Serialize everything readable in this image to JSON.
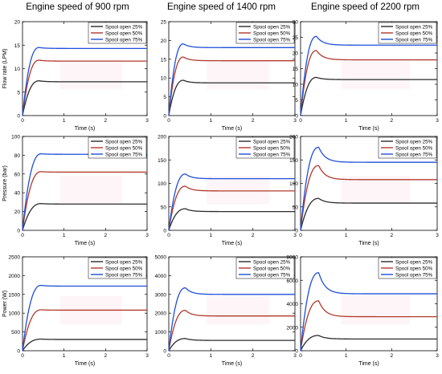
{
  "column_titles": [
    "Engine speed of 900 rpm",
    "Engine speed of 1400 rpm",
    "Engine speed of 2200 rpm"
  ],
  "legend_labels": [
    "Spool open 25%",
    "Spool open 50%",
    "Spool open 75%"
  ],
  "series_colors": [
    "#2b2b2b",
    "#b03a2e",
    "#1f4fd8"
  ],
  "chart_data": [
    {
      "type": "line",
      "row": 0,
      "col": 0,
      "title": "Engine speed of 900 rpm",
      "xlabel": "Time (s)",
      "ylabel": "Flow rate (LPM)",
      "xlim": [
        0,
        3
      ],
      "ylim": [
        0,
        20
      ],
      "xticks": [
        0,
        1,
        2,
        3
      ],
      "yticks": [
        0,
        5,
        10,
        15,
        20
      ],
      "series": [
        {
          "name": "Spool open 25%",
          "steady": 7.2,
          "peak": 7.4,
          "t_peak": 0.4
        },
        {
          "name": "Spool open 50%",
          "steady": 11.6,
          "peak": 11.8,
          "t_peak": 0.4
        },
        {
          "name": "Spool open 75%",
          "steady": 14.3,
          "peak": 14.5,
          "t_peak": 0.4
        }
      ]
    },
    {
      "type": "line",
      "row": 0,
      "col": 1,
      "title": "Engine speed of 1400 rpm",
      "xlabel": "Time (s)",
      "ylabel": "",
      "xlim": [
        0,
        3
      ],
      "ylim": [
        0,
        25
      ],
      "xticks": [
        0,
        1,
        2,
        3
      ],
      "yticks": [
        0,
        5,
        10,
        15,
        20,
        25
      ],
      "series": [
        {
          "name": "Spool open 25%",
          "steady": 8.7,
          "peak": 9.4,
          "t_peak": 0.35
        },
        {
          "name": "Spool open 50%",
          "steady": 14.6,
          "peak": 15.6,
          "t_peak": 0.35
        },
        {
          "name": "Spool open 75%",
          "steady": 18.1,
          "peak": 19.1,
          "t_peak": 0.35
        }
      ]
    },
    {
      "type": "line",
      "row": 0,
      "col": 2,
      "title": "Engine speed of 2200 rpm",
      "xlabel": "Time (s)",
      "ylabel": "",
      "xlim": [
        0,
        3
      ],
      "ylim": [
        0,
        30
      ],
      "xticks": [
        0,
        1,
        2,
        3
      ],
      "yticks": [
        0,
        5,
        10,
        15,
        20,
        25,
        30
      ],
      "series": [
        {
          "name": "Spool open 25%",
          "steady": 11.5,
          "peak": 12.2,
          "t_peak": 0.35
        },
        {
          "name": "Spool open 50%",
          "steady": 17.8,
          "peak": 20.8,
          "t_peak": 0.35
        },
        {
          "name": "Spool open 75%",
          "steady": 22.5,
          "peak": 25.3,
          "t_peak": 0.35
        }
      ]
    },
    {
      "type": "line",
      "row": 1,
      "col": 0,
      "title": "",
      "xlabel": "Time (s)",
      "ylabel": "Pressure (bar)",
      "xlim": [
        0,
        3
      ],
      "ylim": [
        0,
        100
      ],
      "xticks": [
        0,
        1,
        2,
        3
      ],
      "yticks": [
        0,
        20,
        40,
        60,
        80,
        100
      ],
      "series": [
        {
          "name": "Spool open 25%",
          "steady": 28,
          "peak": 28.5,
          "t_peak": 0.45
        },
        {
          "name": "Spool open 50%",
          "steady": 62,
          "peak": 62.5,
          "t_peak": 0.45
        },
        {
          "name": "Spool open 75%",
          "steady": 81,
          "peak": 81.5,
          "t_peak": 0.45
        }
      ]
    },
    {
      "type": "line",
      "row": 1,
      "col": 1,
      "title": "",
      "xlabel": "Time (s)",
      "ylabel": "",
      "xlim": [
        0,
        3
      ],
      "ylim": [
        0,
        200
      ],
      "xticks": [
        0,
        1,
        2,
        3
      ],
      "yticks": [
        0,
        50,
        100,
        150,
        200
      ],
      "series": [
        {
          "name": "Spool open 25%",
          "steady": 40,
          "peak": 46,
          "t_peak": 0.4
        },
        {
          "name": "Spool open 50%",
          "steady": 84,
          "peak": 94,
          "t_peak": 0.4
        },
        {
          "name": "Spool open 75%",
          "steady": 110,
          "peak": 120,
          "t_peak": 0.4
        }
      ]
    },
    {
      "type": "line",
      "row": 1,
      "col": 2,
      "title": "",
      "xlabel": "Time (s)",
      "ylabel": "",
      "xlim": [
        0,
        3
      ],
      "ylim": [
        0,
        200
      ],
      "xticks": [
        0,
        1,
        2,
        3
      ],
      "yticks": [
        0,
        50,
        100,
        150,
        200
      ],
      "series": [
        {
          "name": "Spool open 25%",
          "steady": 58,
          "peak": 68,
          "t_peak": 0.4
        },
        {
          "name": "Spool open 50%",
          "steady": 108,
          "peak": 138,
          "t_peak": 0.4
        },
        {
          "name": "Spool open 75%",
          "steady": 145,
          "peak": 177,
          "t_peak": 0.4
        }
      ]
    },
    {
      "type": "line",
      "row": 2,
      "col": 0,
      "title": "",
      "xlabel": "Time (s)",
      "ylabel": "Power (W)",
      "xlim": [
        0,
        3
      ],
      "ylim": [
        0,
        2500
      ],
      "xticks": [
        0,
        1,
        2,
        3
      ],
      "yticks": [
        0,
        500,
        1000,
        1500,
        2000,
        2500
      ],
      "series": [
        {
          "name": "Spool open 25%",
          "steady": 300,
          "peak": 310,
          "t_peak": 0.45
        },
        {
          "name": "Spool open 50%",
          "steady": 1080,
          "peak": 1090,
          "t_peak": 0.45
        },
        {
          "name": "Spool open 75%",
          "steady": 1720,
          "peak": 1740,
          "t_peak": 0.45
        }
      ]
    },
    {
      "type": "line",
      "row": 2,
      "col": 1,
      "title": "",
      "xlabel": "Time (s)",
      "ylabel": "",
      "xlim": [
        0,
        3
      ],
      "ylim": [
        0,
        5000
      ],
      "xticks": [
        0,
        1,
        2,
        3
      ],
      "yticks": [
        0,
        1000,
        2000,
        3000,
        4000,
        5000
      ],
      "series": [
        {
          "name": "Spool open 25%",
          "steady": 550,
          "peak": 650,
          "t_peak": 0.4
        },
        {
          "name": "Spool open 50%",
          "steady": 1850,
          "peak": 2150,
          "t_peak": 0.4
        },
        {
          "name": "Spool open 75%",
          "steady": 3000,
          "peak": 3350,
          "t_peak": 0.4
        }
      ]
    },
    {
      "type": "line",
      "row": 2,
      "col": 2,
      "title": "",
      "xlabel": "Time (s)",
      "ylabel": "",
      "xlim": [
        0,
        3
      ],
      "ylim": [
        0,
        8000
      ],
      "xticks": [
        0,
        1,
        2,
        3
      ],
      "yticks": [
        0,
        2000,
        4000,
        6000,
        8000
      ],
      "series": [
        {
          "name": "Spool open 25%",
          "steady": 1000,
          "peak": 1300,
          "t_peak": 0.4
        },
        {
          "name": "Spool open 50%",
          "steady": 2900,
          "peak": 4250,
          "t_peak": 0.4
        },
        {
          "name": "Spool open 75%",
          "steady": 4850,
          "peak": 6650,
          "t_peak": 0.4
        }
      ]
    }
  ]
}
